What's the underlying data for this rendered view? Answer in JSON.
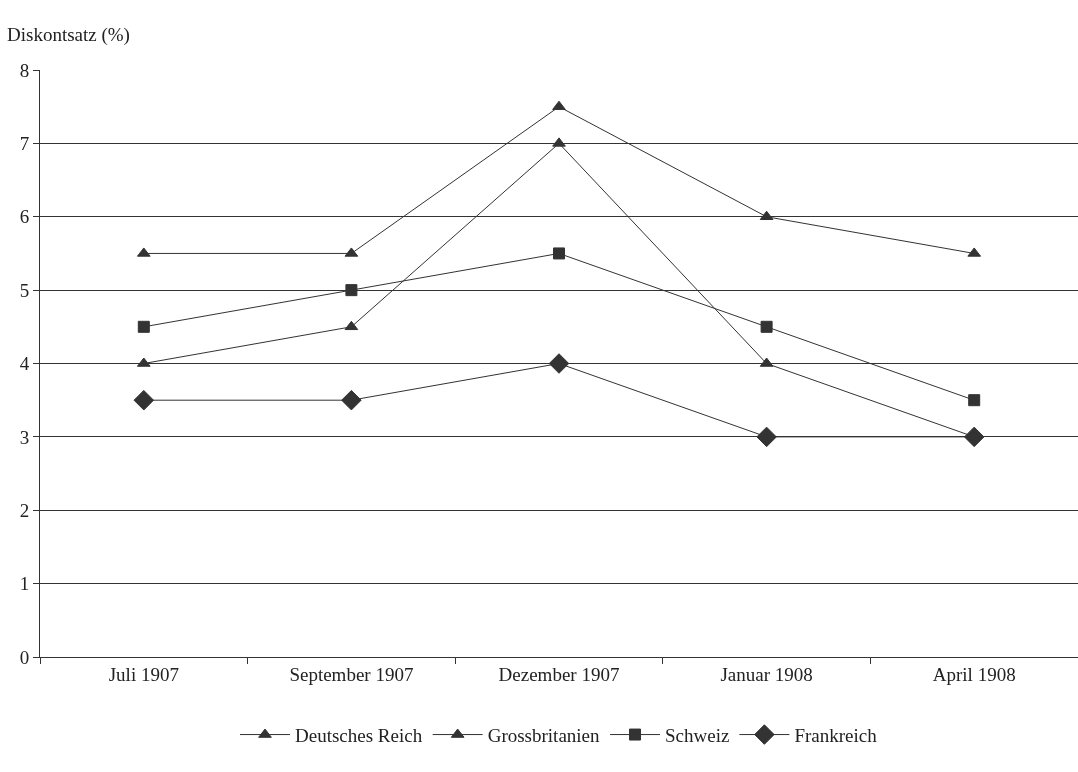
{
  "chart_data": {
    "type": "line",
    "ylabel": "Diskontsatz (%)",
    "categories": [
      "Juli 1907",
      "September 1907",
      "Dezember 1907",
      "Januar 1908",
      "April 1908"
    ],
    "series": [
      {
        "name": "Deutsches Reich",
        "color": "#333333",
        "marker": "triangle",
        "values": [
          5.5,
          5.5,
          7.5,
          6,
          5.5
        ]
      },
      {
        "name": "Grossbritanien",
        "color": "#333333",
        "marker": "triangle",
        "values": [
          4,
          4.5,
          7,
          4,
          3
        ]
      },
      {
        "name": "Schweiz",
        "color": "#333333",
        "marker": "square",
        "values": [
          4.5,
          5,
          5.5,
          4.5,
          3.5
        ]
      },
      {
        "name": "Frankreich",
        "color": "#333333",
        "marker": "diamond",
        "values": [
          3.5,
          3.5,
          4,
          3,
          3
        ]
      }
    ],
    "ylim": [
      0,
      8
    ],
    "yticks": [
      0,
      1,
      2,
      3,
      4,
      5,
      6,
      7,
      8
    ],
    "grid": "y",
    "legend": "bottom",
    "line_style": "solid"
  }
}
